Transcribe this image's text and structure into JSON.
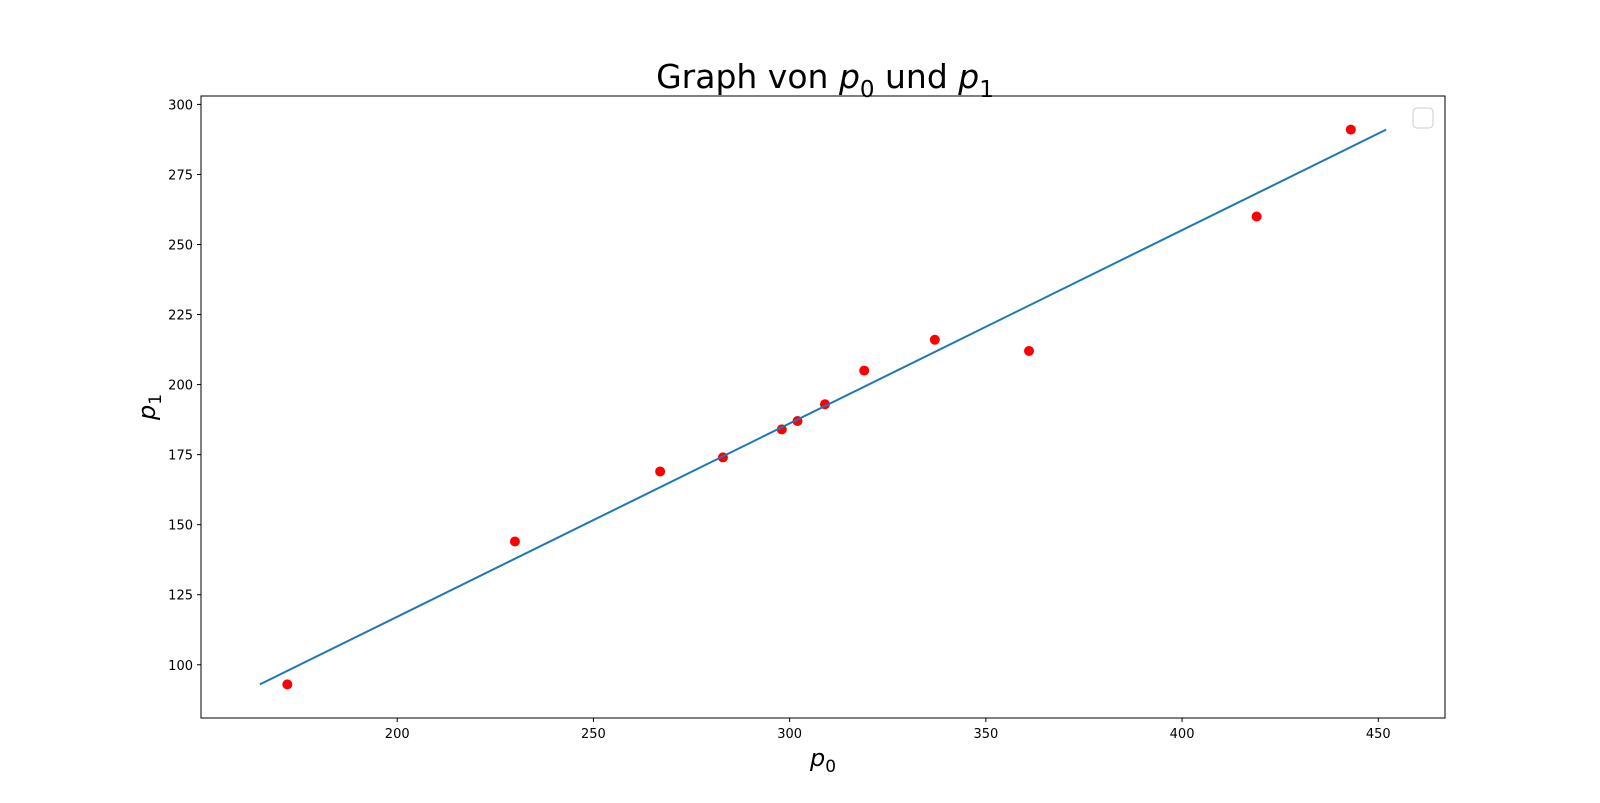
{
  "chart_data": {
    "type": "scatter",
    "title": {
      "prefix": "Graph von ",
      "var1": "p",
      "sub1": "0",
      "middle": " und ",
      "var2": "p",
      "sub2": "1"
    },
    "xlabel": {
      "var": "p",
      "sub": "0"
    },
    "ylabel": {
      "var": "p",
      "sub": "1"
    },
    "xlim": [
      150,
      467
    ],
    "ylim": [
      81,
      303
    ],
    "xticks": [
      200,
      250,
      300,
      350,
      400,
      450
    ],
    "yticks": [
      100,
      125,
      150,
      175,
      200,
      225,
      250,
      275,
      300
    ],
    "grid": false,
    "legend": "top-right, empty",
    "series": [
      {
        "kind": "points",
        "color": "#ff0000",
        "points": [
          [
            172,
            93
          ],
          [
            230,
            144
          ],
          [
            267,
            169
          ],
          [
            283,
            174
          ],
          [
            298,
            184
          ],
          [
            302,
            187
          ],
          [
            309,
            193
          ],
          [
            319,
            205
          ],
          [
            337,
            216
          ],
          [
            361,
            212
          ],
          [
            419,
            260
          ],
          [
            443,
            291
          ]
        ]
      },
      {
        "kind": "line",
        "color": "#1f77b4",
        "points": [
          [
            165,
            93
          ],
          [
            452,
            291
          ]
        ]
      }
    ]
  }
}
